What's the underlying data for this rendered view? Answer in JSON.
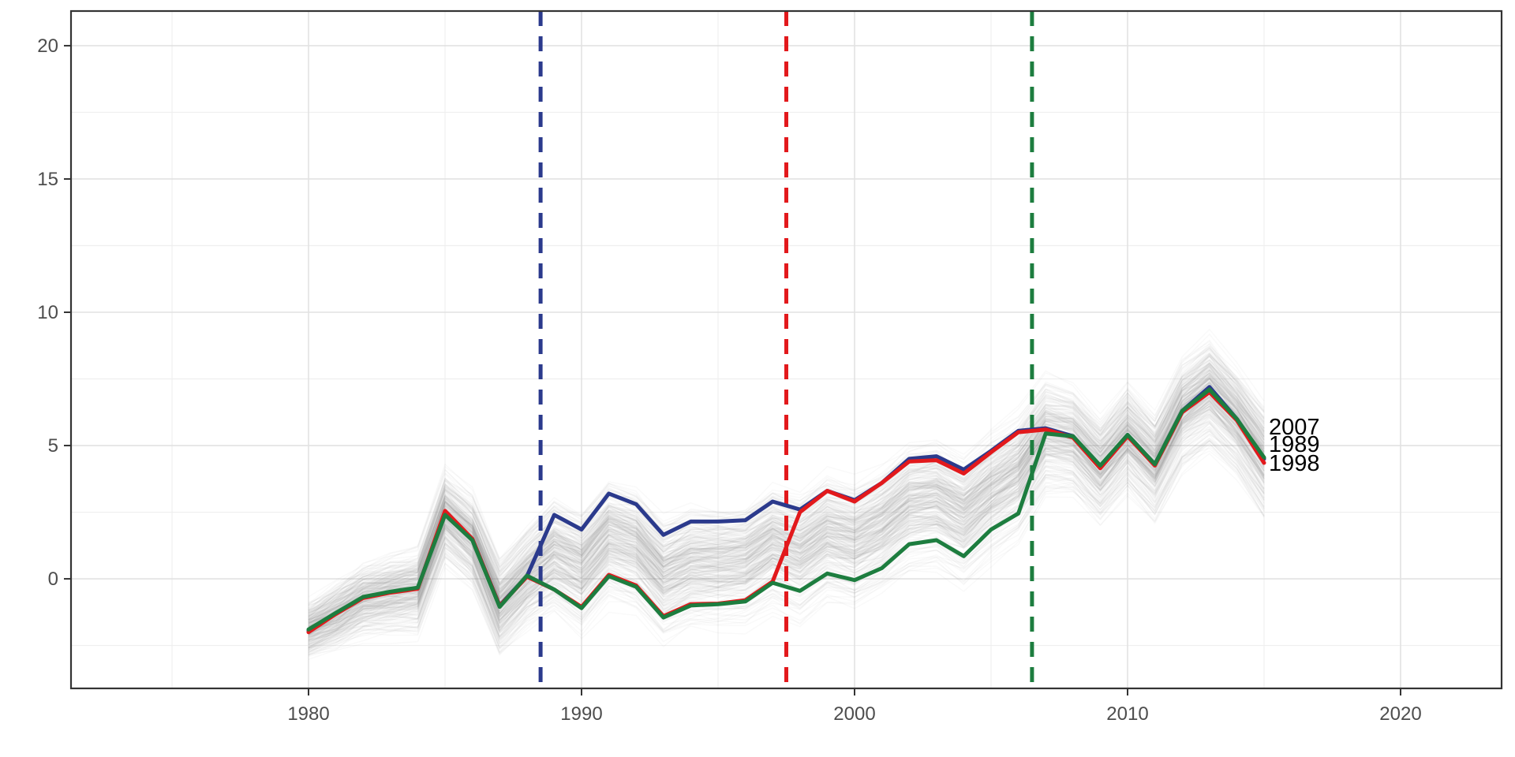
{
  "page": {
    "background": "#ffffff"
  },
  "chart_data": {
    "type": "line",
    "title": "",
    "xlabel": "",
    "ylabel": "",
    "x_years": {
      "start": 1980,
      "end": 2015
    },
    "x_axis": {
      "major_ticks": [
        1980,
        1990,
        2000,
        2010,
        2020
      ],
      "minor_ticks": [
        1975,
        1985,
        1995,
        2005,
        2015
      ],
      "lim": [
        1971.3,
        2023.7
      ]
    },
    "y_axis": {
      "major_ticks": [
        0,
        5,
        10,
        15,
        20
      ],
      "minor_ticks": [
        -2.5,
        2.5,
        7.5,
        12.5,
        17.5
      ],
      "lim": [
        -4.11,
        21.3
      ]
    },
    "grid": "on",
    "legend_position": "none",
    "series": [
      {
        "name": "1989",
        "color": "#2B3A8C",
        "values": [
          -1.95,
          -1.3,
          -0.7,
          -0.5,
          -0.35,
          2.5,
          1.5,
          -1.0,
          0.1,
          2.4,
          1.85,
          3.2,
          2.8,
          1.65,
          2.15,
          2.15,
          2.2,
          2.9,
          2.6,
          3.3,
          2.95,
          3.6,
          4.5,
          4.6,
          4.1,
          4.8,
          5.55,
          5.65,
          5.35,
          4.2,
          5.4,
          4.3,
          6.3,
          7.2,
          6.0,
          4.5
        ]
      },
      {
        "name": "1998",
        "color": "#E2191C",
        "values": [
          -2.0,
          -1.32,
          -0.72,
          -0.52,
          -0.37,
          2.55,
          1.5,
          -1.02,
          0.08,
          -0.4,
          -1.05,
          0.15,
          -0.25,
          -1.4,
          -0.95,
          -0.93,
          -0.8,
          -0.1,
          2.5,
          3.3,
          2.9,
          3.6,
          4.4,
          4.45,
          3.95,
          4.75,
          5.5,
          5.6,
          5.3,
          4.15,
          5.35,
          4.25,
          6.25,
          7.0,
          5.95,
          4.35
        ]
      },
      {
        "name": "2007",
        "color": "#1D7D3F",
        "values": [
          -1.9,
          -1.28,
          -0.68,
          -0.48,
          -0.33,
          2.4,
          1.45,
          -1.05,
          0.12,
          -0.4,
          -1.1,
          0.1,
          -0.3,
          -1.45,
          -1.0,
          -0.95,
          -0.85,
          -0.15,
          -0.45,
          0.2,
          -0.05,
          0.4,
          1.3,
          1.45,
          0.85,
          1.85,
          2.45,
          5.45,
          5.35,
          4.25,
          5.4,
          4.3,
          6.3,
          7.1,
          6.0,
          4.55
        ]
      }
    ],
    "event_lines": [
      {
        "label": "1989",
        "year": 1988.5,
        "color": "#2B3A8C"
      },
      {
        "label": "1998",
        "year": 1997.5,
        "color": "#E2191C"
      },
      {
        "label": "2007",
        "year": 2006.5,
        "color": "#1D7D3F"
      }
    ],
    "end_labels": [
      {
        "text": "2007",
        "value": 5.71
      },
      {
        "text": "1989",
        "value": 5.06
      },
      {
        "text": "1998",
        "value": 4.35
      }
    ],
    "background_draws": {
      "count": 300,
      "seed": 42,
      "color": "#8a8a8a",
      "opacity": 0.05,
      "stroke_width": 1.4,
      "center": [
        -1.9,
        -1.35,
        -0.75,
        -0.55,
        -0.4,
        2.45,
        1.5,
        -1.0,
        0.1,
        1.0,
        0.4,
        1.6,
        1.25,
        0.1,
        0.6,
        0.6,
        0.7,
        1.4,
        1.0,
        1.75,
        1.45,
        2.0,
        2.85,
        3.0,
        2.4,
        3.3,
        4.0,
        5.5,
        5.3,
        4.2,
        5.4,
        4.3,
        6.3,
        7.1,
        6.0,
        4.5
      ],
      "halfwidth": [
        1.3,
        1.5,
        1.6,
        1.7,
        1.8,
        1.9,
        1.9,
        2.0,
        2.0,
        2.3,
        2.4,
        2.4,
        2.4,
        2.4,
        2.4,
        2.4,
        2.4,
        2.4,
        2.5,
        2.5,
        2.5,
        2.5,
        2.5,
        2.5,
        2.5,
        2.4,
        2.4,
        2.2,
        2.0,
        2.0,
        2.0,
        2.0,
        2.0,
        2.2,
        2.0,
        2.2
      ]
    },
    "colors": {
      "panel_border": "#333333",
      "grid_major": "#E2E2E2",
      "grid_minor": "#EFEFEF",
      "tick_mark": "#333333",
      "tick_label": "#4D4D4D",
      "end_label": "#000000"
    }
  }
}
